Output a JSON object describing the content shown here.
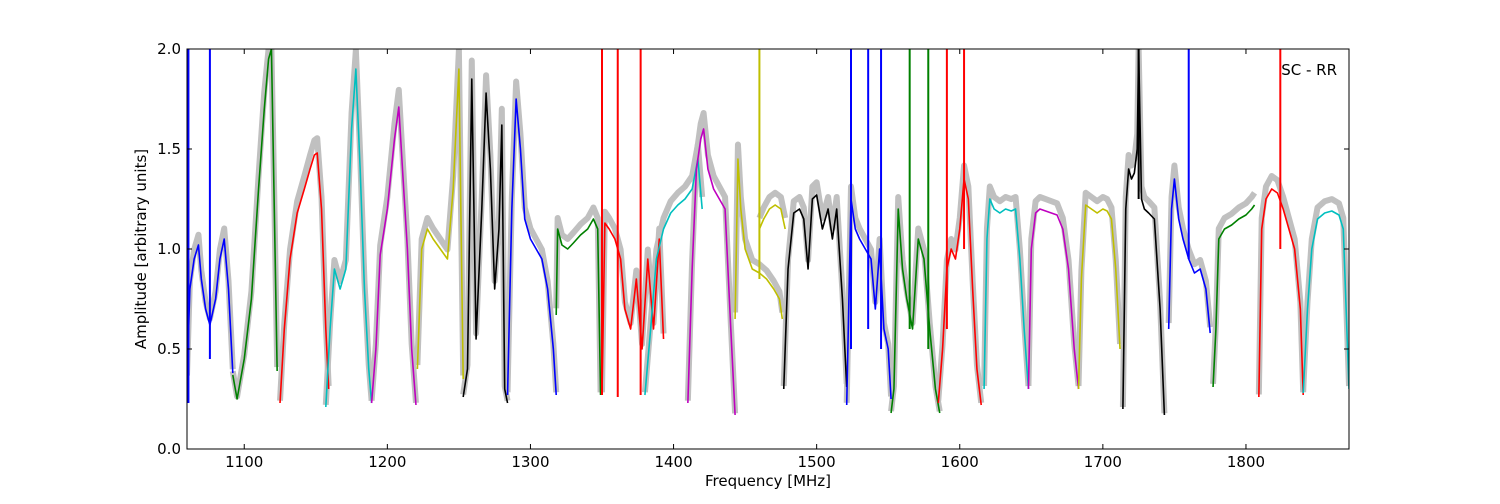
{
  "chart_data": {
    "type": "line",
    "xlabel": "Frequency [MHz]",
    "ylabel": "Amplitude [arbitrary units]",
    "annotation": "SC - RR",
    "xlim": [
      1060,
      1872
    ],
    "ylim": [
      0.0,
      2.0
    ],
    "xticks": [
      1100,
      1200,
      1300,
      1400,
      1500,
      1600,
      1700,
      1800
    ],
    "xtick_labels": [
      "1100",
      "1200",
      "1300",
      "1400",
      "1500",
      "1600",
      "1700",
      "1800"
    ],
    "yticks": [
      0.0,
      0.5,
      1.0,
      1.5,
      2.0
    ],
    "ytick_labels": [
      "0.0",
      "0.5",
      "1.0",
      "1.5",
      "2.0"
    ],
    "grid": false,
    "background_trace_color": "#c0c0c0",
    "series": [
      {
        "color": "#0000ff",
        "x": [
          1060,
          1062,
          1065,
          1068,
          1070,
          1073,
          1076,
          1080,
          1083,
          1086,
          1089,
          1092
        ],
        "y": [
          0.35,
          0.8,
          0.95,
          1.02,
          0.85,
          0.7,
          0.62,
          0.75,
          0.95,
          1.05,
          0.8,
          0.38
        ]
      },
      {
        "color": "#008000",
        "x": [
          1092,
          1095,
          1100,
          1105,
          1110,
          1114,
          1117,
          1119,
          1121,
          1123
        ],
        "y": [
          0.37,
          0.25,
          0.45,
          0.75,
          1.3,
          1.7,
          1.95,
          2.0,
          1.2,
          0.39
        ]
      },
      {
        "color": "#ff0000",
        "x": [
          1125,
          1128,
          1132,
          1137,
          1142,
          1146,
          1149,
          1151,
          1154,
          1157,
          1159
        ],
        "y": [
          0.23,
          0.6,
          0.95,
          1.18,
          1.3,
          1.4,
          1.47,
          1.48,
          1.2,
          0.6,
          0.3
        ]
      },
      {
        "color": "#00bfbf",
        "x": [
          1157,
          1160,
          1163,
          1167,
          1171,
          1175,
          1178,
          1181,
          1184,
          1187,
          1189
        ],
        "y": [
          0.21,
          0.6,
          0.9,
          0.8,
          0.9,
          1.6,
          1.9,
          1.4,
          0.8,
          0.4,
          0.23
        ]
      },
      {
        "color": "#bf00bf",
        "x": [
          1189,
          1192,
          1195,
          1200,
          1205,
          1208,
          1211,
          1214,
          1217,
          1220
        ],
        "y": [
          0.23,
          0.5,
          0.97,
          1.2,
          1.55,
          1.71,
          1.35,
          1.0,
          0.5,
          0.22
        ]
      },
      {
        "color": "#bfbf00",
        "x": [
          1221,
          1224,
          1228,
          1232,
          1237,
          1242,
          1246,
          1250,
          1253
        ],
        "y": [
          0.4,
          1.0,
          1.1,
          1.05,
          1.0,
          0.95,
          1.3,
          1.9,
          0.35
        ]
      },
      {
        "color": "#000000",
        "x": [
          1253,
          1256,
          1259,
          1262,
          1266,
          1269,
          1272,
          1275,
          1278,
          1280,
          1282,
          1284
        ],
        "y": [
          0.26,
          0.4,
          1.85,
          0.55,
          1.2,
          1.78,
          1.4,
          0.8,
          1.1,
          1.62,
          0.3,
          0.23
        ]
      },
      {
        "color": "#0000ff",
        "x": [
          1284,
          1287,
          1290,
          1293,
          1296,
          1300,
          1304,
          1308,
          1312,
          1316,
          1318
        ],
        "y": [
          0.27,
          1.2,
          1.75,
          1.5,
          1.15,
          1.05,
          1.0,
          0.95,
          0.8,
          0.5,
          0.27
        ]
      },
      {
        "color": "#008000",
        "x": [
          1318,
          1319,
          1322,
          1326,
          1330,
          1335,
          1340,
          1344,
          1347,
          1349
        ],
        "y": [
          0.67,
          1.1,
          1.02,
          1.0,
          1.03,
          1.07,
          1.1,
          1.15,
          1.1,
          0.27
        ]
      },
      {
        "color": "#ff0000",
        "x": [
          1350,
          1352,
          1355,
          1359,
          1363,
          1366,
          1370,
          1374,
          1378,
          1382,
          1386,
          1390,
          1393
        ],
        "y": [
          0.27,
          1.13,
          1.1,
          1.05,
          0.95,
          0.7,
          0.6,
          0.85,
          0.5,
          0.95,
          0.6,
          1.05,
          0.55
        ]
      },
      {
        "color": "#00bfbf",
        "x": [
          1380,
          1384,
          1388,
          1393,
          1398,
          1403,
          1408,
          1413,
          1417,
          1420
        ],
        "y": [
          0.27,
          0.6,
          0.95,
          1.1,
          1.18,
          1.22,
          1.25,
          1.3,
          1.45,
          1.2
        ]
      },
      {
        "color": "#bf00bf",
        "x": [
          1410,
          1413,
          1416,
          1419,
          1421,
          1424,
          1428,
          1432,
          1436,
          1440,
          1443
        ],
        "y": [
          0.23,
          0.9,
          1.4,
          1.55,
          1.6,
          1.4,
          1.3,
          1.25,
          1.2,
          0.6,
          0.17
        ]
      },
      {
        "color": "#bfbf00",
        "x": [
          1443,
          1445,
          1447,
          1450,
          1455,
          1460,
          1465,
          1470,
          1474,
          1476
        ],
        "y": [
          0.65,
          1.45,
          1.2,
          1.0,
          0.9,
          0.88,
          0.85,
          0.8,
          0.75,
          0.65
        ]
      },
      {
        "color": "#bfbf00",
        "x": [
          1460,
          1463,
          1467,
          1471,
          1475,
          1478
        ],
        "y": [
          1.1,
          1.15,
          1.2,
          1.22,
          1.2,
          1.1
        ]
      },
      {
        "color": "#000000",
        "x": [
          1477,
          1480,
          1484,
          1488,
          1491,
          1494,
          1497,
          1500,
          1504,
          1508,
          1511,
          1514,
          1518,
          1521
        ],
        "y": [
          0.3,
          0.9,
          1.18,
          1.2,
          1.15,
          0.9,
          1.25,
          1.27,
          1.1,
          1.2,
          1.05,
          1.2,
          0.75,
          0.31
        ]
      },
      {
        "color": "#0000ff",
        "x": [
          1521,
          1524,
          1527,
          1530,
          1534,
          1538,
          1541,
          1544,
          1547,
          1550,
          1552
        ],
        "y": [
          0.22,
          1.25,
          1.1,
          1.05,
          1.0,
          0.95,
          0.7,
          1.0,
          0.6,
          0.5,
          0.25
        ]
      },
      {
        "color": "#008000",
        "x": [
          1552,
          1554,
          1557,
          1560,
          1563,
          1567,
          1571,
          1575,
          1579,
          1583,
          1586
        ],
        "y": [
          0.18,
          0.3,
          1.2,
          0.9,
          0.75,
          0.6,
          1.05,
          0.95,
          0.6,
          0.3,
          0.18
        ]
      },
      {
        "color": "#ff0000",
        "x": [
          1585,
          1588,
          1591,
          1594,
          1597,
          1600,
          1603,
          1606,
          1609,
          1612,
          1615
        ],
        "y": [
          0.23,
          0.5,
          0.9,
          1.0,
          0.95,
          1.1,
          1.35,
          1.25,
          0.8,
          0.4,
          0.22
        ]
      },
      {
        "color": "#00bfbf",
        "x": [
          1617,
          1619,
          1621,
          1624,
          1628,
          1632,
          1636,
          1639,
          1642,
          1645,
          1648
        ],
        "y": [
          0.3,
          1.05,
          1.25,
          1.2,
          1.18,
          1.2,
          1.19,
          1.2,
          0.95,
          0.6,
          0.3
        ]
      },
      {
        "color": "#bf00bf",
        "x": [
          1648,
          1650,
          1653,
          1656,
          1660,
          1664,
          1668,
          1672,
          1676,
          1680,
          1683
        ],
        "y": [
          0.3,
          1.0,
          1.18,
          1.2,
          1.19,
          1.18,
          1.17,
          1.1,
          0.9,
          0.5,
          0.3
        ]
      },
      {
        "color": "#bfbf00",
        "x": [
          1683,
          1685,
          1688,
          1692,
          1696,
          1700,
          1703,
          1706,
          1709,
          1712
        ],
        "y": [
          0.3,
          0.85,
          1.22,
          1.2,
          1.18,
          1.2,
          1.19,
          1.15,
          0.9,
          0.5
        ]
      },
      {
        "color": "#000000",
        "x": [
          1714,
          1716,
          1718,
          1720,
          1722,
          1724,
          1725,
          1727,
          1729,
          1732,
          1736,
          1740,
          1743
        ],
        "y": [
          0.2,
          1.2,
          1.4,
          1.35,
          1.38,
          1.5,
          2.0,
          1.25,
          1.2,
          1.18,
          1.15,
          0.7,
          0.17
        ]
      },
      {
        "color": "#0000ff",
        "x": [
          1746,
          1748,
          1750,
          1753,
          1756,
          1760,
          1764,
          1768,
          1772,
          1775
        ],
        "y": [
          0.6,
          1.2,
          1.35,
          1.15,
          1.05,
          0.95,
          0.88,
          0.9,
          0.8,
          0.58
        ]
      },
      {
        "color": "#008000",
        "x": [
          1777,
          1779,
          1781,
          1785,
          1790,
          1795,
          1800,
          1804,
          1806
        ],
        "y": [
          0.31,
          0.6,
          1.05,
          1.1,
          1.12,
          1.15,
          1.17,
          1.2,
          1.22
        ]
      },
      {
        "color": "#ff0000",
        "x": [
          1809,
          1811,
          1814,
          1818,
          1822,
          1826,
          1830,
          1834,
          1838,
          1840
        ],
        "y": [
          0.26,
          1.1,
          1.25,
          1.3,
          1.28,
          1.2,
          1.1,
          1.0,
          0.7,
          0.27
        ]
      },
      {
        "color": "#00bfbf",
        "x": [
          1840,
          1843,
          1846,
          1850,
          1855,
          1860,
          1865,
          1868,
          1872
        ],
        "y": [
          0.28,
          0.7,
          1.0,
          1.15,
          1.18,
          1.19,
          1.17,
          1.1,
          0.3
        ]
      }
    ],
    "spikes": [
      {
        "color": "#0000ff",
        "x": 1061,
        "y0": 0.23,
        "y1": 2.0
      },
      {
        "color": "#0000ff",
        "x": 1076,
        "y0": 0.45,
        "y1": 2.0
      },
      {
        "color": "#ff0000",
        "x": 1350,
        "y0": 0.27,
        "y1": 2.0
      },
      {
        "color": "#ff0000",
        "x": 1361,
        "y0": 0.26,
        "y1": 2.0
      },
      {
        "color": "#ff0000",
        "x": 1377,
        "y0": 0.27,
        "y1": 2.0
      },
      {
        "color": "#bfbf00",
        "x": 1460,
        "y0": 0.85,
        "y1": 2.0
      },
      {
        "color": "#000000",
        "x": 1725,
        "y0": 1.25,
        "y1": 2.0
      },
      {
        "color": "#0000ff",
        "x": 1760,
        "y0": 0.95,
        "y1": 2.0
      },
      {
        "color": "#ff0000",
        "x": 1824,
        "y0": 1.0,
        "y1": 2.0
      },
      {
        "color": "#ff0000",
        "x": 1603,
        "y0": 1.0,
        "y1": 2.0
      },
      {
        "color": "#ff0000",
        "x": 1591,
        "y0": 0.6,
        "y1": 2.0
      },
      {
        "color": "#0000ff",
        "x": 1524,
        "y0": 0.5,
        "y1": 2.0
      },
      {
        "color": "#0000ff",
        "x": 1536,
        "y0": 0.6,
        "y1": 2.0
      },
      {
        "color": "#0000ff",
        "x": 1545,
        "y0": 0.5,
        "y1": 2.0
      },
      {
        "color": "#008000",
        "x": 1565,
        "y0": 0.6,
        "y1": 2.0
      },
      {
        "color": "#008000",
        "x": 1578,
        "y0": 0.5,
        "y1": 2.0
      }
    ]
  }
}
